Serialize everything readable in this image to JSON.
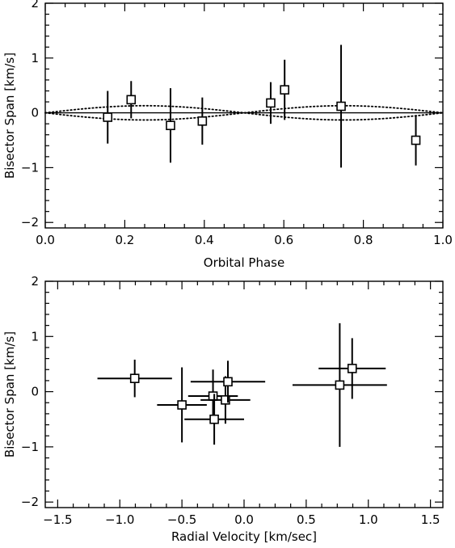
{
  "chart_data": [
    {
      "type": "scatter",
      "xlabel": "Orbital Phase",
      "ylabel": "Bisector Span [km/s]",
      "xlim": [
        0.0,
        1.0
      ],
      "ylim": [
        -2.1,
        2.0
      ],
      "xticks": [
        "0.0",
        "0.2",
        "0.4",
        "0.6",
        "0.8",
        "1.0"
      ],
      "xtick_values": [
        0.0,
        0.2,
        0.4,
        0.6,
        0.8,
        1.0
      ],
      "yticks": [
        "−2",
        "−1",
        "0",
        "1",
        "2"
      ],
      "ytick_values": [
        -2,
        -1,
        0,
        1,
        2
      ],
      "marker": "open-square",
      "points": [
        {
          "x": 0.157,
          "y": -0.08,
          "yerr": 0.48
        },
        {
          "x": 0.216,
          "y": 0.24,
          "yerr": 0.34
        },
        {
          "x": 0.315,
          "y": -0.23,
          "yerr": 0.68
        },
        {
          "x": 0.395,
          "y": -0.15,
          "yerr": 0.43
        },
        {
          "x": 0.567,
          "y": 0.18,
          "yerr": 0.38
        },
        {
          "x": 0.602,
          "y": 0.42,
          "yerr": 0.55
        },
        {
          "x": 0.744,
          "y": 0.12,
          "yerr": 1.12
        },
        {
          "x": 0.932,
          "y": -0.5,
          "yerr": 0.46
        }
      ],
      "curves": [
        {
          "style": "solid",
          "shape": "flat",
          "amplitude": 0.0
        },
        {
          "style": "dotted",
          "shape": "sinusoid-envelope",
          "amplitude": 0.13
        }
      ]
    },
    {
      "type": "scatter",
      "xlabel": "Radial Velocity [km/sec]",
      "ylabel": "Bisector Span [km/s]",
      "xlim": [
        -1.6,
        1.6
      ],
      "ylim": [
        -2.1,
        2.0
      ],
      "xticks": [
        "−1.5",
        "−1.0",
        "−0.5",
        "0.0",
        "0.5",
        "1.0",
        "1.5"
      ],
      "xtick_values": [
        -1.5,
        -1.0,
        -0.5,
        0.0,
        0.5,
        1.0,
        1.5
      ],
      "yticks": [
        "−2",
        "−1",
        "0",
        "1",
        "2"
      ],
      "ytick_values": [
        -2,
        -1,
        0,
        1,
        2
      ],
      "marker": "open-square",
      "points": [
        {
          "x": -0.88,
          "y": 0.24,
          "xerr": 0.3,
          "yerr": 0.34
        },
        {
          "x": -0.5,
          "y": -0.24,
          "xerr": 0.2,
          "yerr": 0.68
        },
        {
          "x": -0.25,
          "y": -0.08,
          "xerr": 0.2,
          "yerr": 0.48
        },
        {
          "x": -0.15,
          "y": -0.15,
          "xerr": 0.2,
          "yerr": 0.43
        },
        {
          "x": -0.13,
          "y": 0.18,
          "xerr": 0.3,
          "yerr": 0.38
        },
        {
          "x": -0.24,
          "y": -0.5,
          "xerr": 0.24,
          "yerr": 0.46
        },
        {
          "x": 0.77,
          "y": 0.12,
          "xerr": 0.38,
          "yerr": 1.12
        },
        {
          "x": 0.87,
          "y": 0.42,
          "xerr": 0.27,
          "yerr": 0.55
        }
      ]
    }
  ]
}
